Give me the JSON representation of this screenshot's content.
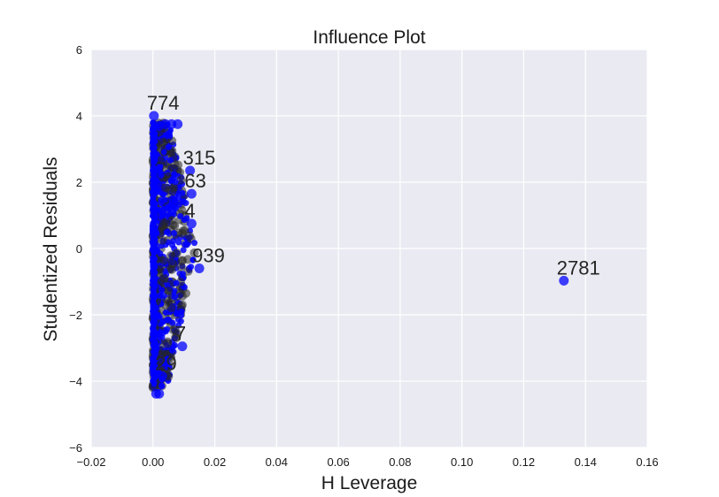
{
  "chart_data": {
    "type": "scatter",
    "title": "Influence Plot",
    "xlabel": "H Leverage",
    "ylabel": "Studentized Residuals",
    "xlim": [
      -0.02,
      0.16
    ],
    "ylim": [
      -6,
      6
    ],
    "xticks": [
      "−0.02",
      "0.00",
      "0.02",
      "0.04",
      "0.06",
      "0.08",
      "0.10",
      "0.12",
      "0.14",
      "0.16"
    ],
    "xtick_values": [
      -0.02,
      0.0,
      0.02,
      0.04,
      0.06,
      0.08,
      0.1,
      0.12,
      0.14,
      0.16
    ],
    "yticks": [
      "−6",
      "−4",
      "−2",
      "0",
      "2",
      "4",
      "6"
    ],
    "ytick_values": [
      -6,
      -4,
      -2,
      0,
      2,
      4,
      6
    ],
    "grid": true,
    "colors": {
      "background": "#eaeaf2",
      "grid": "#ffffff",
      "marker": "#0000ff",
      "label": "#262626"
    },
    "points": [
      {
        "x": 0.133,
        "y": -0.97,
        "label": "2781"
      },
      {
        "x": 0.0003,
        "y": 4.0,
        "label": "774"
      },
      {
        "x": 0.002,
        "y": 3.7,
        "label": ""
      },
      {
        "x": 0.004,
        "y": 3.75,
        "label": ""
      },
      {
        "x": 0.006,
        "y": 3.75,
        "label": ""
      },
      {
        "x": 0.008,
        "y": 3.75,
        "label": ""
      },
      {
        "x": 0.012,
        "y": 2.35,
        "label": "315"
      },
      {
        "x": 0.0125,
        "y": 1.65,
        "label": "63"
      },
      {
        "x": 0.0125,
        "y": 0.75,
        "label": "4"
      },
      {
        "x": 0.015,
        "y": -0.6,
        "label": "939"
      },
      {
        "x": 0.0095,
        "y": -2.95,
        "label": "7"
      },
      {
        "x": 0.003,
        "y": -3.85,
        "label": "29"
      },
      {
        "x": 0.001,
        "y": -4.38,
        "label": ""
      },
      {
        "x": 0.002,
        "y": -4.38,
        "label": ""
      }
    ]
  }
}
